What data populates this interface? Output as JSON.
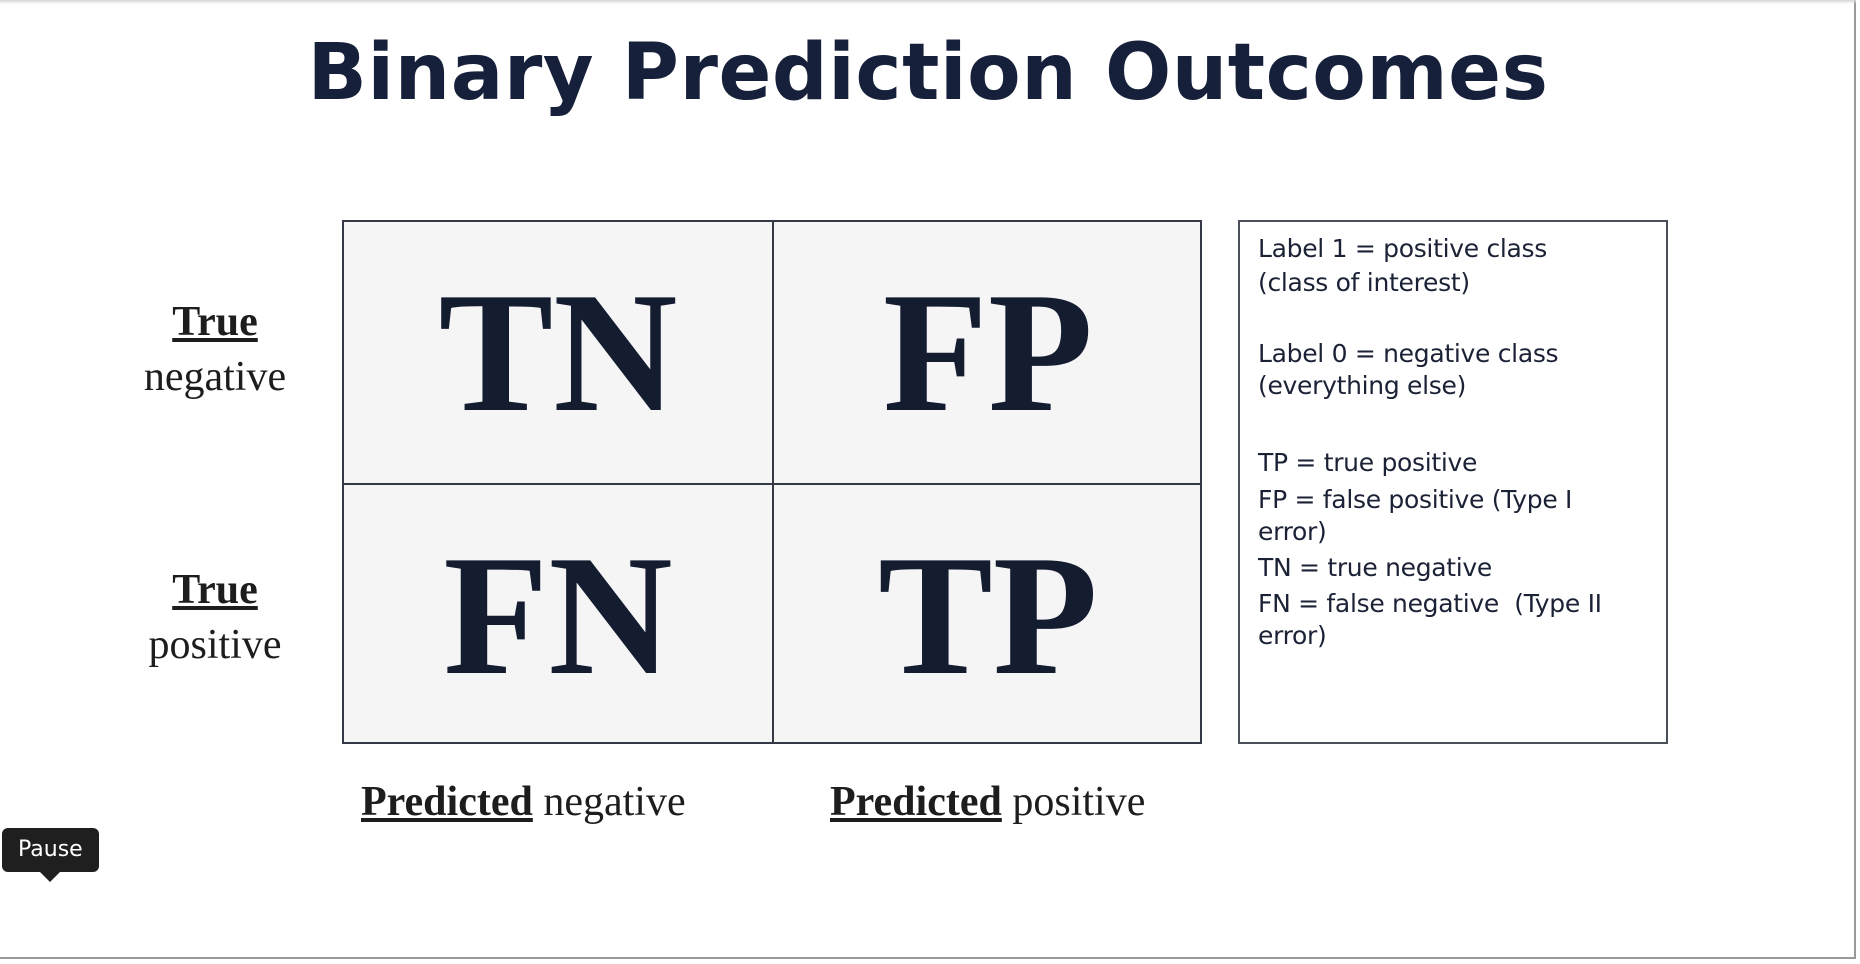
{
  "slide": {
    "title": "Binary Prediction Outcomes"
  },
  "matrix": {
    "cells": {
      "top_left": "TN",
      "top_right": "FP",
      "bottom_left": "FN",
      "bottom_right": "TP"
    },
    "rows": [
      {
        "strong": "True",
        "plain": "negative"
      },
      {
        "strong": "True",
        "plain": "positive"
      }
    ],
    "columns": [
      {
        "strong": "Predicted",
        "plain": " negative"
      },
      {
        "strong": "Predicted",
        "plain": " positive"
      }
    ]
  },
  "legend": {
    "label1_line1": "Label 1 = positive class",
    "label1_line2": "(class of interest)",
    "label0_line1": "Label 0 = negative class",
    "label0_line2": "(everything else)",
    "tp": "TP = true positive",
    "fp_line1": "FP = false positive (Type I",
    "fp_line2": "error)",
    "tn": "TN = true negative",
    "fn_line1": "FN = false negative  (Type II",
    "fn_line2": "error)"
  },
  "player": {
    "tooltip": "Pause"
  }
}
